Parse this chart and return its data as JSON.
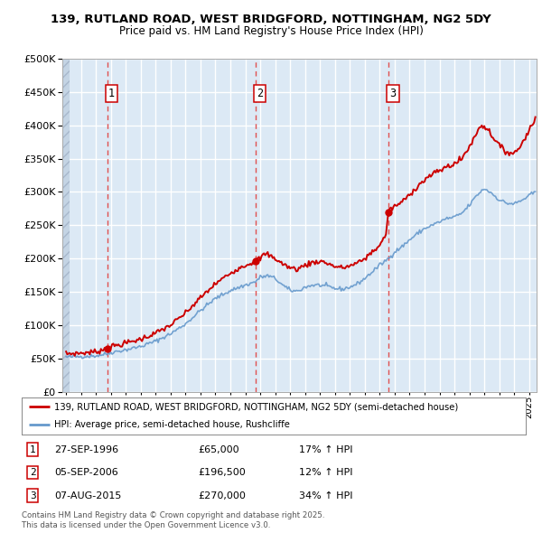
{
  "title_line1": "139, RUTLAND ROAD, WEST BRIDGFORD, NOTTINGHAM, NG2 5DY",
  "title_line2": "Price paid vs. HM Land Registry's House Price Index (HPI)",
  "background_color": "#dce9f5",
  "grid_color": "#ffffff",
  "ylim": [
    0,
    500000
  ],
  "yticks": [
    0,
    50000,
    100000,
    150000,
    200000,
    250000,
    300000,
    350000,
    400000,
    450000,
    500000
  ],
  "xlim_start": 1993.75,
  "xlim_end": 2025.5,
  "sale_dates": [
    1996.75,
    2006.67,
    2015.58
  ],
  "sale_prices": [
    65000,
    196500,
    270000
  ],
  "sale_labels": [
    "1",
    "2",
    "3"
  ],
  "red_line_color": "#cc0000",
  "blue_line_color": "#6699cc",
  "dashed_line_color": "#e05050",
  "marker_color": "#cc0000",
  "legend_entries": [
    "139, RUTLAND ROAD, WEST BRIDGFORD, NOTTINGHAM, NG2 5DY (semi-detached house)",
    "HPI: Average price, semi-detached house, Rushcliffe"
  ],
  "table_rows": [
    [
      "1",
      "27-SEP-1996",
      "£65,000",
      "17% ↑ HPI"
    ],
    [
      "2",
      "05-SEP-2006",
      "£196,500",
      "12% ↑ HPI"
    ],
    [
      "3",
      "07-AUG-2015",
      "£270,000",
      "34% ↑ HPI"
    ]
  ],
  "footnote": "Contains HM Land Registry data © Crown copyright and database right 2025.\nThis data is licensed under the Open Government Licence v3.0."
}
